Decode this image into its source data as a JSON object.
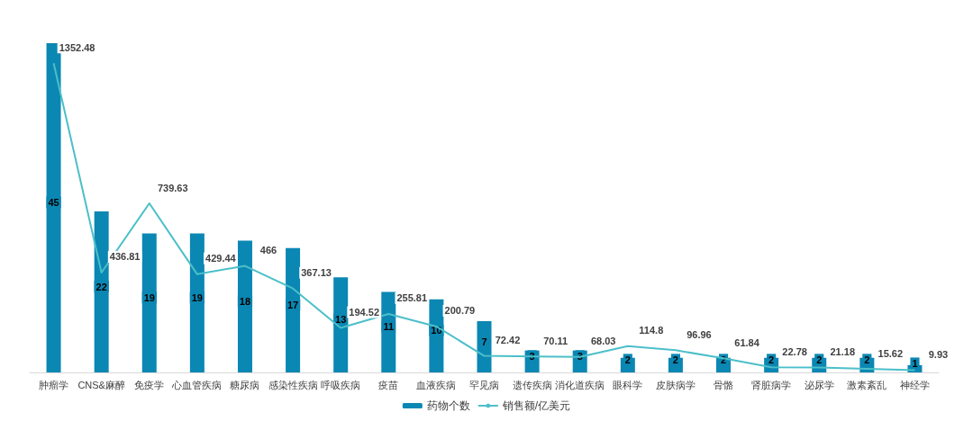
{
  "chart_data": {
    "type": "bar",
    "categories": [
      "肿瘤学",
      "CNS&麻醉",
      "免疫学",
      "心血管疾病",
      "糖尿病",
      "感染性疾病",
      "呼吸疾病",
      "疫苗",
      "血液疾病",
      "罕见病",
      "遗传疾病",
      "消化道疾病",
      "眼科学",
      "皮肤病学",
      "骨骼",
      "肾脏病学",
      "泌尿学",
      "激素紊乱",
      "神经学"
    ],
    "series": [
      {
        "name": "药物个数",
        "color": "#0b87b3",
        "values": [
          45,
          22,
          19,
          19,
          18,
          17,
          13,
          11,
          10,
          7,
          3,
          3,
          2,
          2,
          2,
          2,
          2,
          2,
          1
        ]
      },
      {
        "name": "销售额/亿美元",
        "type": "line",
        "axis": "y2",
        "color": "#4cbfc9",
        "values": [
          1352.48,
          436.81,
          739.63,
          429.44,
          466,
          367.13,
          194.52,
          255.81,
          200.79,
          72.42,
          70.11,
          68.03,
          114.8,
          96.96,
          61.84,
          22.78,
          21.18,
          15.62,
          9.93
        ]
      }
    ],
    "ylim": [
      0,
      45
    ],
    "y2lim": [
      0,
      1440
    ],
    "data_labels": true,
    "legend": "bottom",
    "grid": false,
    "marker": "none",
    "tick_labels": "x"
  }
}
